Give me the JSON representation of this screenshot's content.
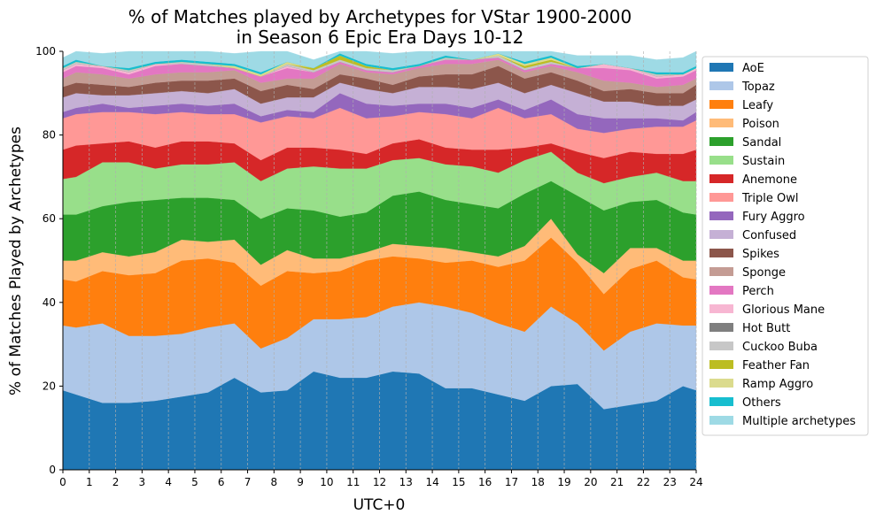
{
  "chart_data": {
    "type": "area",
    "stacked": true,
    "title_line1": "% of Matches played by Archetypes for VStar 1900-2000",
    "title_line2": "in Season 6 Epic Era Days 10-12",
    "xlabel": "UTC+0",
    "ylabel": "% of Matches Played by Archetypes",
    "xlim": [
      0,
      24
    ],
    "ylim": [
      0,
      100
    ],
    "x_ticks": [
      0,
      1,
      2,
      3,
      4,
      5,
      6,
      7,
      8,
      9,
      10,
      11,
      12,
      13,
      14,
      15,
      16,
      17,
      18,
      19,
      20,
      21,
      22,
      23,
      24
    ],
    "x_tick_labels": [
      "0",
      "1",
      "2",
      "3",
      "4",
      "5",
      "6",
      "7",
      "8",
      "9",
      "10",
      "11",
      "12",
      "13",
      "14",
      "15",
      "16",
      "17",
      "18",
      "19",
      "20",
      "21",
      "22",
      "23",
      "24"
    ],
    "y_ticks": [
      0,
      20,
      40,
      60,
      80,
      100
    ],
    "y_tick_labels": [
      "0",
      "20",
      "40",
      "60",
      "80",
      "100"
    ],
    "grid": "vertical dashed",
    "legend_position": "right",
    "x": [
      0,
      0.5,
      1.5,
      2.5,
      3.5,
      4.5,
      5.5,
      6.5,
      7.5,
      8.5,
      9.5,
      10.5,
      11.5,
      12.5,
      13.5,
      14.5,
      15.5,
      16.5,
      17.5,
      18.5,
      19.5,
      20.5,
      21.5,
      22.5,
      23.5,
      24
    ],
    "series": [
      {
        "name": "AoE",
        "color": "#1f77b4",
        "values": [
          19,
          18,
          16,
          16,
          16.5,
          17.5,
          18.5,
          22,
          18.5,
          19,
          23.5,
          22,
          22,
          23.5,
          23,
          19.5,
          19.5,
          18,
          16.5,
          20,
          20.5,
          14.5,
          15.5,
          16.5,
          20,
          19
        ]
      },
      {
        "name": "Topaz",
        "color": "#aec7e8",
        "values": [
          15.5,
          16,
          19,
          16,
          15.5,
          15,
          15.5,
          13,
          10.5,
          12.5,
          12.5,
          14,
          14.5,
          15.5,
          17,
          19.5,
          18,
          17,
          16.5,
          19,
          14.5,
          14,
          17.5,
          18.5,
          14.5,
          15.5
        ]
      },
      {
        "name": "Leafy",
        "color": "#ff7f0e",
        "values": [
          11,
          11,
          12.5,
          14.5,
          15,
          17.5,
          16.5,
          14.5,
          15,
          16,
          11,
          11.5,
          13.5,
          12,
          10.5,
          10.5,
          12.5,
          13.5,
          17,
          16.5,
          14.5,
          13.5,
          15,
          15,
          11.5,
          11
        ]
      },
      {
        "name": "Poison",
        "color": "#ffbb78",
        "values": [
          4.5,
          5,
          4.5,
          4.5,
          5,
          5,
          4,
          5.5,
          5,
          5,
          3.5,
          3,
          2,
          3,
          3,
          3.5,
          2,
          2.5,
          3.5,
          4.5,
          2,
          5,
          5,
          3,
          4,
          4.5
        ]
      },
      {
        "name": "Sandal",
        "color": "#2ca02c",
        "values": [
          11,
          11,
          11,
          13,
          12.5,
          10,
          10.5,
          9.5,
          11,
          10,
          11.5,
          10,
          9.5,
          11.5,
          13,
          11.5,
          11.5,
          11.5,
          12.5,
          9,
          14,
          15,
          11,
          11.5,
          11.5,
          11
        ]
      },
      {
        "name": "Sustain",
        "color": "#98df8a",
        "values": [
          8.5,
          9,
          10.5,
          9.5,
          7.5,
          8,
          8,
          9,
          9,
          9.5,
          10.5,
          11.5,
          10.5,
          8.5,
          8,
          8.5,
          9,
          8.5,
          8,
          7,
          5.5,
          6.5,
          6,
          6.5,
          7.5,
          8
        ]
      },
      {
        "name": "Anemone",
        "color": "#d62728",
        "values": [
          7,
          7.5,
          4.5,
          5,
          5,
          5.5,
          5.5,
          4.5,
          5,
          5,
          4.5,
          4.5,
          3.5,
          4,
          4.5,
          4,
          4,
          5.5,
          3,
          2,
          5,
          6,
          6,
          4.5,
          6.5,
          7.5
        ]
      },
      {
        "name": "Triple Owl",
        "color": "#ff9896",
        "values": [
          7.5,
          7.5,
          7.5,
          7,
          8,
          7,
          6.5,
          7,
          9,
          7.5,
          7,
          10,
          8.5,
          6.5,
          6.5,
          8,
          7.5,
          10,
          7,
          7,
          5.5,
          6,
          5.5,
          6.5,
          6.5,
          7
        ]
      },
      {
        "name": "Fury Aggro",
        "color": "#9467bd",
        "values": [
          1.5,
          1.5,
          2,
          1,
          2,
          2,
          2,
          2.5,
          1.5,
          1.5,
          1.5,
          3.5,
          3.5,
          2.5,
          2,
          2.5,
          2.5,
          2,
          2,
          3.5,
          3.5,
          3.5,
          2.5,
          2,
          1.5,
          2
        ]
      },
      {
        "name": "Confused",
        "color": "#c5b0d5",
        "values": [
          3.5,
          3.5,
          2,
          3,
          3,
          3,
          3,
          3.5,
          3,
          3,
          3.5,
          2.5,
          3.5,
          3,
          4,
          4,
          4.5,
          4,
          4,
          3.5,
          5,
          4,
          4,
          3,
          3.5,
          3
        ]
      },
      {
        "name": "Spikes",
        "color": "#8c564b",
        "values": [
          2.5,
          2.5,
          2.5,
          2,
          2.5,
          2.5,
          3,
          2.5,
          3,
          3,
          2,
          2,
          2.5,
          2,
          2.5,
          3,
          3.5,
          4,
          3.5,
          3,
          3,
          2.5,
          3,
          3,
          3,
          3.5
        ]
      },
      {
        "name": "Sponge",
        "color": "#c49c94",
        "values": [
          2,
          2.5,
          2.5,
          2,
          2,
          2,
          2,
          2,
          2,
          1.5,
          2.5,
          2.5,
          1.5,
          2.5,
          2,
          2.5,
          2.5,
          1.5,
          1.5,
          1.5,
          2,
          2.5,
          1.5,
          1.5,
          2,
          1.5
        ]
      },
      {
        "name": "Perch",
        "color": "#e377c2",
        "values": [
          1.5,
          1.5,
          1.5,
          1,
          2,
          2,
          1.5,
          0.5,
          1.5,
          2.5,
          1.5,
          0.5,
          0.5,
          0.5,
          0.5,
          1,
          1,
          0.5,
          0.5,
          0.5,
          1,
          3,
          3,
          2,
          2,
          2
        ]
      },
      {
        "name": "Glorious Mane",
        "color": "#f7b6d2",
        "values": [
          0.5,
          0.5,
          0.5,
          0.5,
          0.5,
          0,
          0,
          0,
          0,
          0.5,
          0,
          0,
          0,
          0,
          0,
          0,
          0,
          0,
          0,
          0,
          0,
          1,
          0.5,
          0.5,
          0.5,
          0.5
        ]
      },
      {
        "name": "Hot Butt",
        "color": "#7f7f7f",
        "values": [
          0,
          0,
          0,
          0,
          0,
          0,
          0,
          0,
          0,
          0,
          0,
          0,
          0,
          0,
          0,
          0,
          0,
          0,
          0,
          0,
          0,
          0,
          0,
          0,
          0,
          0
        ]
      },
      {
        "name": "Cuckoo Buba",
        "color": "#c7c7c7",
        "values": [
          0.5,
          0.5,
          0,
          0.5,
          0,
          0.5,
          0.5,
          0,
          0,
          0.5,
          0.5,
          0.5,
          0.5,
          0.5,
          0,
          0.5,
          0,
          0.5,
          0.5,
          0.5,
          0,
          0,
          0,
          0.5,
          0,
          0
        ]
      },
      {
        "name": "Feather Fan",
        "color": "#bcbd22",
        "values": [
          0,
          0,
          0,
          0,
          0,
          0,
          0,
          0,
          0,
          0,
          0.5,
          1,
          0.5,
          0,
          0,
          0,
          0,
          0,
          0.5,
          0.5,
          0,
          0,
          0,
          0,
          0,
          0
        ]
      },
      {
        "name": "Ramp Aggro",
        "color": "#dbdb8d",
        "values": [
          0,
          0,
          0,
          0,
          0,
          0,
          0,
          0.5,
          0.5,
          0.5,
          0,
          0,
          0,
          0,
          0,
          0,
          0,
          0.5,
          0.5,
          0.5,
          0,
          0,
          0,
          0,
          0,
          0
        ]
      },
      {
        "name": "Others",
        "color": "#17becf",
        "values": [
          0.5,
          0.5,
          0,
          0.5,
          0.5,
          0.5,
          0.5,
          0.5,
          0.5,
          0,
          0,
          0.5,
          0.5,
          0.5,
          0.5,
          0.5,
          0,
          0,
          0.5,
          0.5,
          0.5,
          0,
          0,
          0.5,
          0.5,
          0.5
        ]
      },
      {
        "name": "Multiple archetypes",
        "color": "#9edae5",
        "values": [
          2,
          2,
          3,
          4,
          3.5,
          3,
          4,
          2.5,
          5.5,
          2.5,
          2,
          2.5,
          4,
          3.5,
          4.5,
          2,
          2.5,
          2,
          2.5,
          2.5,
          2.5,
          2,
          3,
          3,
          3.5,
          3.5
        ]
      }
    ]
  }
}
